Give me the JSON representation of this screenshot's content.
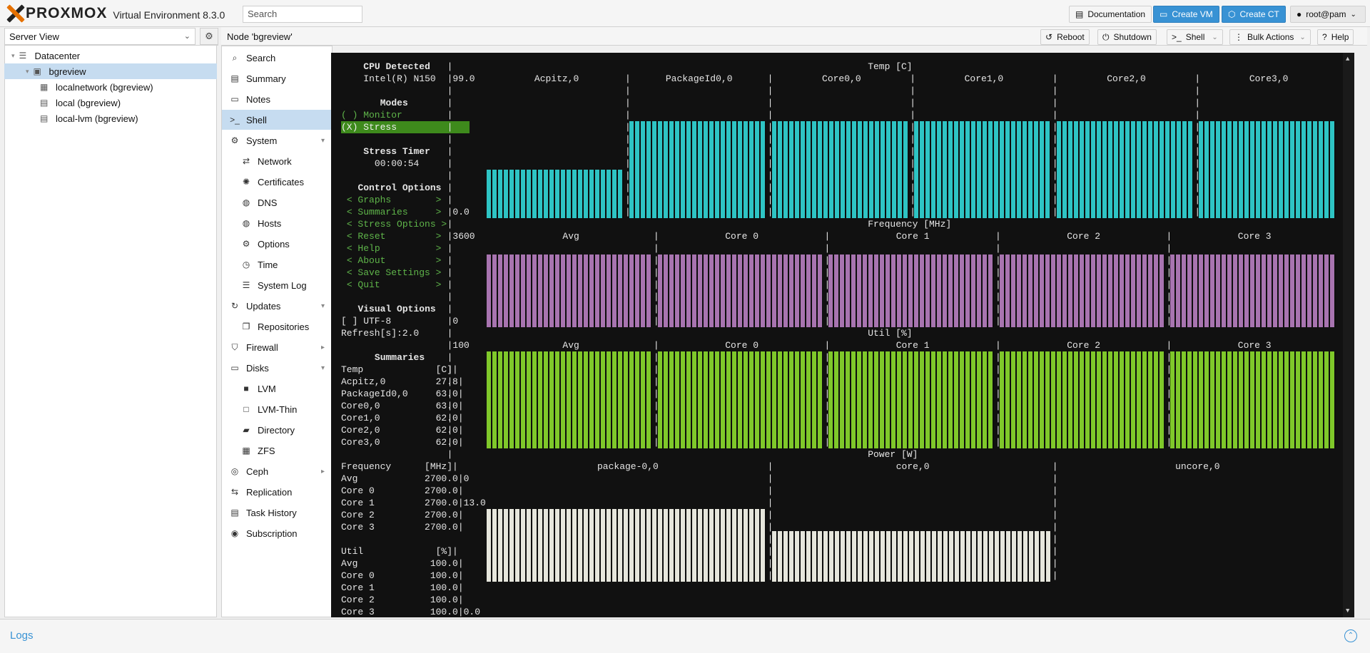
{
  "app": {
    "brand": "PROXMOX",
    "version_label": "Virtual Environment 8.3.0"
  },
  "topbar": {
    "search_placeholder": "Search",
    "documentation": "Documentation",
    "create_vm": "Create VM",
    "create_ct": "Create CT",
    "user": "root@pam"
  },
  "view_selector": {
    "value": "Server View"
  },
  "tree": [
    {
      "label": "Datacenter"
    },
    {
      "label": "bgreview"
    },
    {
      "label": "localnetwork (bgreview)"
    },
    {
      "label": "local (bgreview)"
    },
    {
      "label": "local-lvm (bgreview)"
    }
  ],
  "header": {
    "title": "Node 'bgreview'",
    "reboot": "Reboot",
    "shutdown": "Shutdown",
    "shell": "Shell",
    "bulk_actions": "Bulk Actions",
    "help": "Help"
  },
  "menu": [
    {
      "label": "Search",
      "icon": "search-icon"
    },
    {
      "label": "Summary",
      "icon": "book-icon"
    },
    {
      "label": "Notes",
      "icon": "notes-icon"
    },
    {
      "label": "Shell",
      "icon": "terminal-icon"
    },
    {
      "label": "System",
      "icon": "gears-icon"
    },
    {
      "label": "Network",
      "icon": "exchange-icon"
    },
    {
      "label": "Certificates",
      "icon": "certificate-icon"
    },
    {
      "label": "DNS",
      "icon": "globe-icon"
    },
    {
      "label": "Hosts",
      "icon": "globe-icon"
    },
    {
      "label": "Options",
      "icon": "gear-icon"
    },
    {
      "label": "Time",
      "icon": "clock-icon"
    },
    {
      "label": "System Log",
      "icon": "list-icon"
    },
    {
      "label": "Updates",
      "icon": "refresh-icon"
    },
    {
      "label": "Repositories",
      "icon": "files-icon"
    },
    {
      "label": "Firewall",
      "icon": "shield-icon"
    },
    {
      "label": "Disks",
      "icon": "hdd-icon"
    },
    {
      "label": "LVM",
      "icon": "square-icon"
    },
    {
      "label": "LVM-Thin",
      "icon": "square-o-icon"
    },
    {
      "label": "Directory",
      "icon": "folder-icon"
    },
    {
      "label": "ZFS",
      "icon": "th-large-icon"
    },
    {
      "label": "Ceph",
      "icon": "ceph-icon"
    },
    {
      "label": "Replication",
      "icon": "retweet-icon"
    },
    {
      "label": "Task History",
      "icon": "list-alt-icon"
    },
    {
      "label": "Subscription",
      "icon": "support-icon"
    }
  ],
  "terminal": {
    "cpu_detected": "CPU Detected",
    "cpu_model": "Intel(R) N150",
    "modes": "Modes",
    "monitor": "( ) Monitor",
    "stress": "(X) Stress",
    "stress_timer": "Stress Timer",
    "timer_value": "00:00:54",
    "control_options": "Control Options",
    "controls": [
      "< Graphs        >",
      "< Summaries     >",
      "< Stress Options >",
      "< Reset         >",
      "< Help          >",
      "< About         >",
      "< Save Settings >",
      "< Quit          >"
    ],
    "visual_options": "Visual Options",
    "utf8": "[ ] UTF-8",
    "refresh": "Refresh[s]:2.0",
    "summaries": "Summaries",
    "temp_header": "Temp             [C]|",
    "temp_rows": [
      "Acpitz,0         27.8|",
      "PackageId0,0     63.0|",
      "Core0,0          63.0|",
      "Core1,0          62.0|",
      "Core2,0          62.0|",
      "Core3,0          62.0|"
    ],
    "freq_header": "Frequency      [MHz]|",
    "freq_rows": [
      "Avg            2700.0|0",
      "Core 0         2700.0|",
      "Core 1         2700.0|13.0",
      "Core 2         2700.0|",
      "Core 3         2700.0|"
    ],
    "util_header": "Util             [%]|",
    "util_rows": [
      "Avg             100.0|",
      "Core 0          100.0|",
      "Core 1          100.0|",
      "Core 2          100.0|",
      "Core 3          100.0|0.0"
    ],
    "temp_graph_title": "Temp [C]",
    "temp_graph_max": "99.0",
    "temp_graph_min": "0.0",
    "temp_cols": [
      "Acpitz,0",
      "PackageId0,0",
      "Core0,0",
      "Core1,0",
      "Core2,0",
      "Core3,0"
    ],
    "freq_graph_title": "Frequency [MHz]",
    "freq_graph_max": "3600",
    "freq_graph_min": "0",
    "freq_cols": [
      "Avg",
      "Core 0",
      "Core 1",
      "Core 2",
      "Core 3"
    ],
    "util_graph_title": "Util [%]",
    "util_graph_max": "100",
    "util_cols": [
      "Avg",
      "Core 0",
      "Core 1",
      "Core 2",
      "Core 3"
    ],
    "power_graph_title": "Power [W]",
    "power_cols": [
      "package-0,0",
      "core,0",
      "uncore,0"
    ],
    "levels": {
      "temp": [
        0.5,
        1.0,
        1.0,
        1.0,
        1.0,
        1.0
      ],
      "freq": [
        1.0,
        1.0,
        1.0,
        1.0,
        1.0
      ],
      "util": [
        1.0,
        1.0,
        1.0,
        1.0,
        1.0
      ],
      "power": [
        0.75,
        0.52,
        0.0
      ]
    },
    "colors": {
      "temp": "#2ec4c4",
      "freq": "#a874b0",
      "util": "#7fc82a",
      "power": "#e6e6dc",
      "green_text": "#5fb54a",
      "stress_bg": "#3e8a1c"
    }
  },
  "logs": {
    "title": "Logs"
  }
}
